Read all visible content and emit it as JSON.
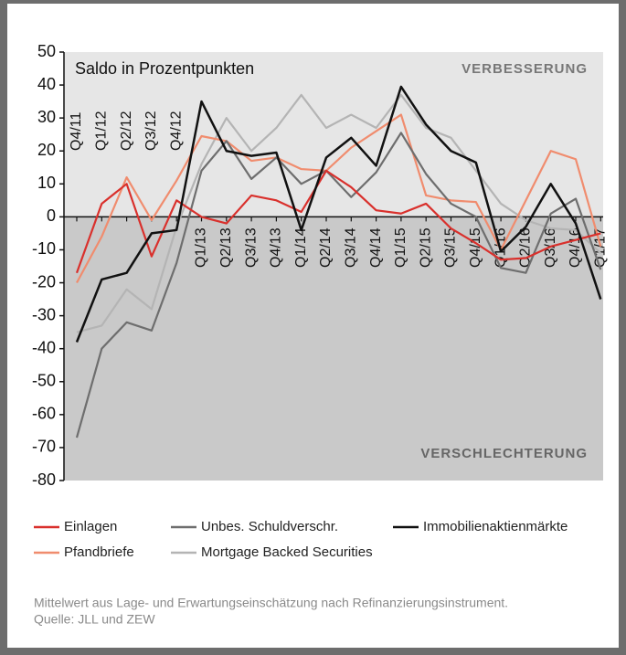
{
  "chart_data": {
    "type": "line",
    "annotation": "Saldo in Prozentpunkten",
    "upper_label": "VERBESSERUNG",
    "lower_label": "VERSCHLECHTERUNG",
    "note": "Mittelwert aus Lage- und Erwartungseinschätzung nach Refinanzierungsinstrument.",
    "source": "Quelle: JLL und ZEW",
    "categories": [
      "Q4/11",
      "Q1/12",
      "Q2/12",
      "Q3/12",
      "Q4/12",
      "Q1/13",
      "Q2/13",
      "Q3/13",
      "Q4/13",
      "Q1/14",
      "Q2/14",
      "Q3/14",
      "Q4/14",
      "Q1/15",
      "Q2/15",
      "Q3/15",
      "Q4/15",
      "Q1/16",
      "Q2/16",
      "Q3/16",
      "Q4/16",
      "Q1/17"
    ],
    "ylim": [
      -80,
      50
    ],
    "yticks": [
      50,
      40,
      30,
      20,
      10,
      0,
      -10,
      -20,
      -30,
      -40,
      -50,
      -60,
      -70,
      -80
    ],
    "series": [
      {
        "name": "Einlagen",
        "color": "#d9302c",
        "values": [
          -17,
          4,
          10,
          -12,
          5,
          0,
          -2,
          6.5,
          5,
          1.5,
          14,
          9,
          2,
          1,
          4,
          -3.5,
          -8,
          -13,
          -12.5,
          -9,
          -7,
          -5
        ]
      },
      {
        "name": "Unbes. Schuldverschr.",
        "color": "#6e6e6e",
        "values": [
          -67,
          -40,
          -32,
          -34.5,
          -14,
          14,
          23,
          11.5,
          18,
          10,
          14,
          6,
          13.5,
          25.5,
          13,
          4,
          0,
          -15.5,
          -17,
          1,
          5.5,
          -16
        ]
      },
      {
        "name": "Immobilienaktienmärkte",
        "color": "#111111",
        "values": [
          -38,
          -19,
          -17,
          -5,
          -4,
          35,
          20,
          18.5,
          19.5,
          -4,
          18,
          24,
          15.5,
          39.5,
          28,
          20,
          16.5,
          -10.5,
          -3,
          10,
          -2,
          -25
        ]
      },
      {
        "name": "Pfandbriefe",
        "color": "#f08c6e",
        "values": [
          -20,
          -6,
          12,
          -1,
          11,
          24.5,
          23,
          17,
          18,
          14.5,
          14,
          21,
          26,
          31,
          6.5,
          5,
          4.5,
          -10,
          5,
          20,
          17.5,
          -9
        ]
      },
      {
        "name": "Mortgage Backed Securities",
        "color": "#b4b4b4",
        "values": [
          -35,
          -33,
          -22,
          -28,
          -3,
          16,
          30,
          20,
          27,
          37,
          27,
          31,
          27,
          37,
          27,
          24,
          14,
          4,
          -1,
          -3.5,
          -4,
          -11
        ]
      }
    ]
  }
}
